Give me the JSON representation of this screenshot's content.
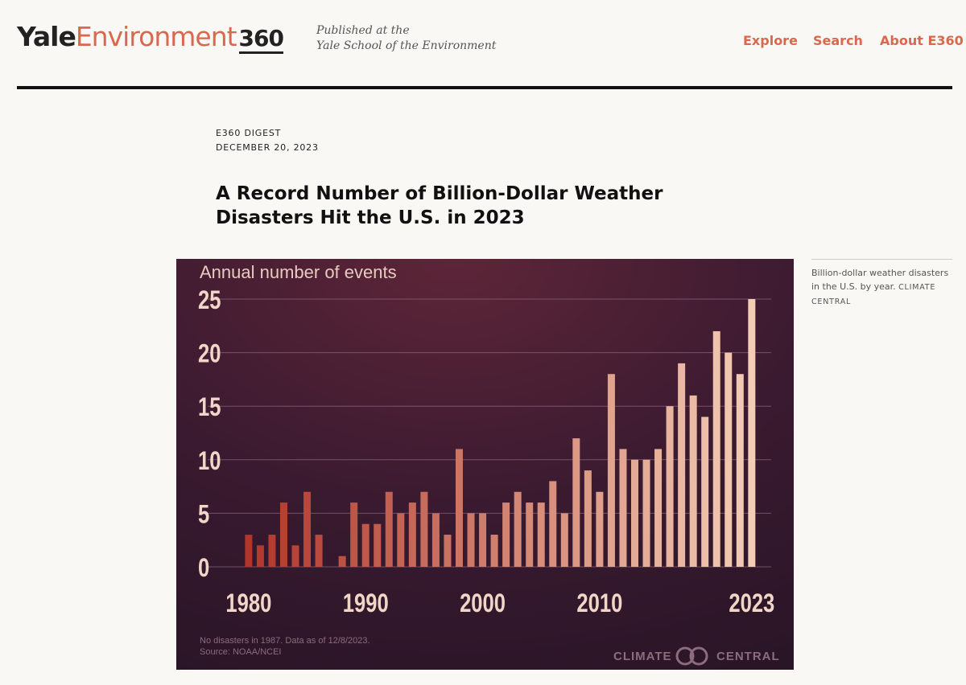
{
  "header": {
    "logo": [
      "Yale",
      "Environment",
      "360"
    ],
    "tagline": [
      "Published at the",
      "Yale School of the Environment"
    ],
    "nav": [
      "Explore",
      "Search",
      "About E360"
    ]
  },
  "article": {
    "kicker": "E360 DIGEST",
    "date": "DECEMBER 20, 2023",
    "title": "A Record Number of Billion-Dollar Weather Disasters Hit the U.S. in 2023"
  },
  "figure": {
    "caption": "Billion-dollar weather disasters in the U.S. by year.",
    "credit": "CLIMATE CENTRAL"
  },
  "chart_data": {
    "type": "bar",
    "y_label": "Annual number of events",
    "note": "No disasters in 1987. Data as of 12/8/2023.",
    "source": "Source: NOAA/NCEI",
    "logo": [
      "CLIMATE",
      "CENTRAL"
    ],
    "x": [
      1980,
      1981,
      1982,
      1983,
      1984,
      1985,
      1986,
      1987,
      1988,
      1989,
      1990,
      1991,
      1992,
      1993,
      1994,
      1995,
      1996,
      1997,
      1998,
      1999,
      2000,
      2001,
      2002,
      2003,
      2004,
      2005,
      2006,
      2007,
      2008,
      2009,
      2010,
      2011,
      2012,
      2013,
      2014,
      2015,
      2016,
      2017,
      2018,
      2019,
      2020,
      2021,
      2022,
      2023
    ],
    "values": [
      3,
      2,
      3,
      6,
      2,
      7,
      3,
      0,
      1,
      6,
      4,
      4,
      7,
      5,
      6,
      7,
      5,
      3,
      11,
      5,
      5,
      3,
      6,
      7,
      6,
      6,
      8,
      5,
      12,
      9,
      7,
      18,
      11,
      10,
      10,
      11,
      15,
      19,
      16,
      14,
      22,
      20,
      18,
      25
    ],
    "xlim": [
      1976.5,
      2024.8
    ],
    "xticks": [
      1980,
      1990,
      2000,
      2010,
      2023
    ],
    "ylim": [
      0,
      25
    ],
    "yticks": [
      0,
      5,
      10,
      15,
      20,
      25
    ],
    "grid": true,
    "color_range": [
      "#b0362b",
      "#f3cdb5"
    ]
  }
}
